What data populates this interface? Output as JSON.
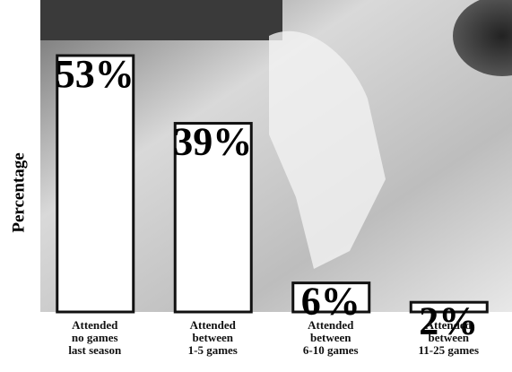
{
  "chart_data": {
    "type": "bar",
    "y_label": "Percentage",
    "categories": [
      "Attended\nno games\nlast season",
      "Attended\nbetween\n1-5 games",
      "Attended\nbetween\n6-10 games",
      "Attended\nbetween\n11-25 games"
    ],
    "values": [
      53,
      39,
      6,
      2
    ],
    "value_labels": [
      "53%",
      "39%",
      "6%",
      "2%"
    ],
    "color": "#ffffff"
  }
}
